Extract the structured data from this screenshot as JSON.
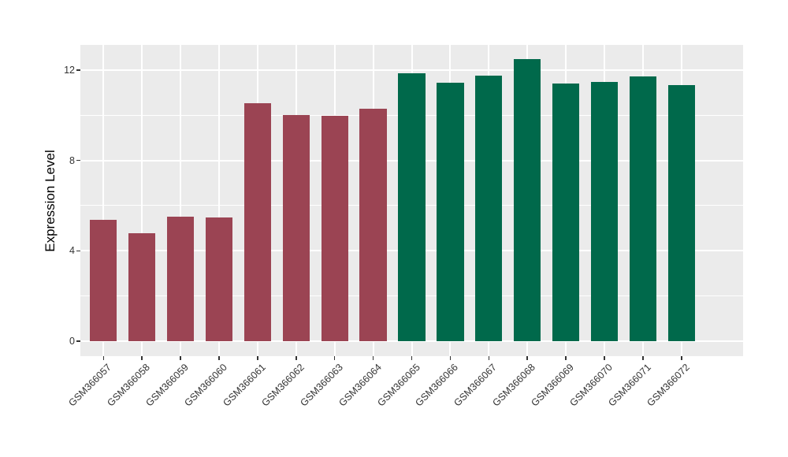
{
  "chart_data": {
    "type": "bar",
    "title": "",
    "xlabel": "",
    "ylabel": "Expression Level",
    "ylim": [
      -0.65,
      13.1
    ],
    "yticks": [
      0,
      4,
      8,
      12
    ],
    "yticks_minor": [
      2,
      6,
      10
    ],
    "grid": "on",
    "legend": "none",
    "panel_bg": "#EBEBEB",
    "grid_color": "#FFFFFF",
    "tick_mark_color": "#333333",
    "axis_text_color": "#333333",
    "axis_title_color": "#000000",
    "group_colors": {
      "left_group": "#9B4453",
      "right_group": "#00694B"
    },
    "categories": [
      "GSM366057",
      "GSM366058",
      "GSM366059",
      "GSM366060",
      "GSM366061",
      "GSM366062",
      "GSM366063",
      "GSM366064",
      "GSM366065",
      "GSM366066",
      "GSM366067",
      "GSM366068",
      "GSM366069",
      "GSM366070",
      "GSM366071",
      "GSM366072"
    ],
    "values": [
      5.37,
      4.78,
      5.51,
      5.48,
      10.55,
      10.01,
      9.97,
      10.29,
      11.86,
      11.44,
      11.76,
      12.49,
      11.41,
      11.46,
      11.72,
      11.35
    ],
    "bar_colors": [
      "#9B4453",
      "#9B4453",
      "#9B4453",
      "#9B4453",
      "#9B4453",
      "#9B4453",
      "#9B4453",
      "#9B4453",
      "#00694B",
      "#00694B",
      "#00694B",
      "#00694B",
      "#00694B",
      "#00694B",
      "#00694B",
      "#00694B"
    ]
  }
}
